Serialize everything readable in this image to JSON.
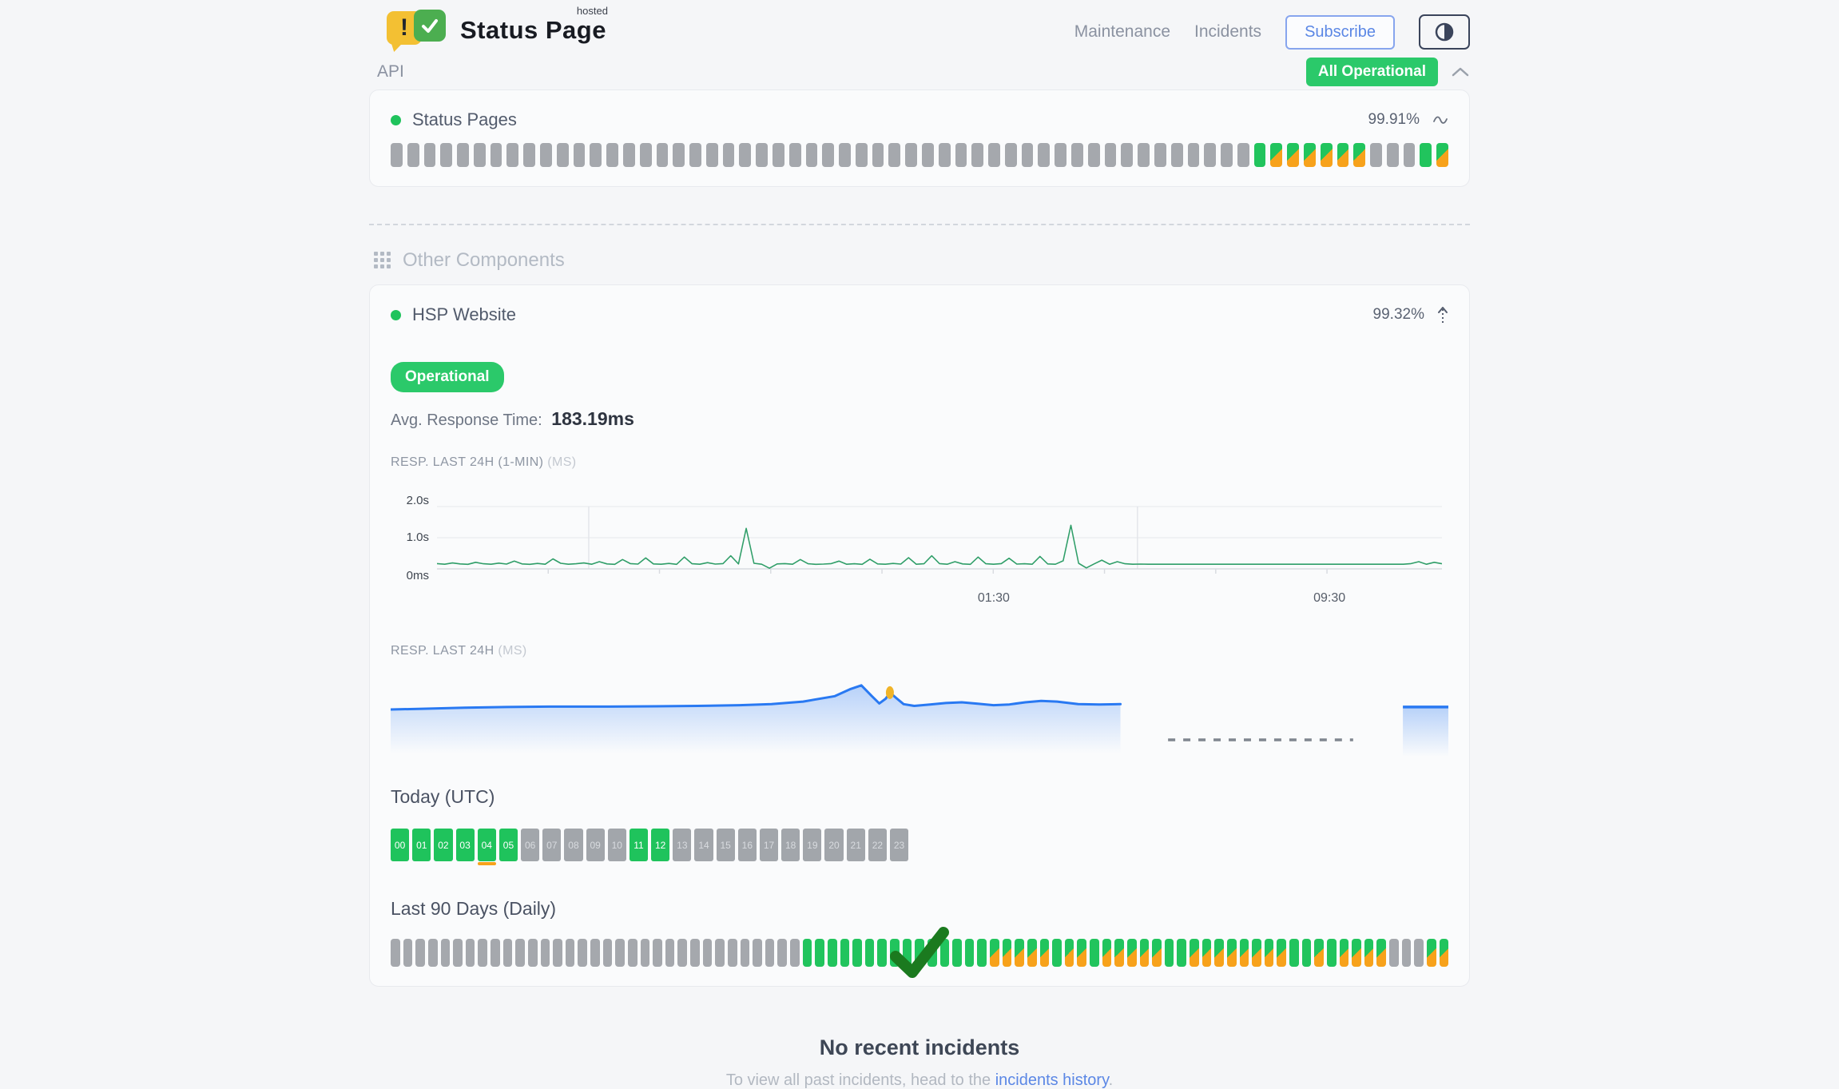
{
  "header": {
    "brand": {
      "name": "Status Page",
      "superscript": "hosted",
      "exclamation": "!"
    },
    "nav": [
      {
        "label": "Maintenance"
      },
      {
        "label": "Incidents"
      }
    ],
    "subscribe_label": "Subscribe",
    "status_badge": "All Operational"
  },
  "api_section": {
    "title": "API",
    "component": {
      "name": "Status Pages",
      "uptime": "99.91%"
    },
    "bars": [
      "g",
      "g",
      "g",
      "g",
      "g",
      "g",
      "g",
      "g",
      "g",
      "g",
      "g",
      "g",
      "g",
      "g",
      "g",
      "g",
      "g",
      "g",
      "g",
      "g",
      "g",
      "g",
      "g",
      "g",
      "g",
      "g",
      "g",
      "g",
      "g",
      "g",
      "g",
      "g",
      "g",
      "g",
      "g",
      "g",
      "g",
      "g",
      "g",
      "g",
      "g",
      "g",
      "g",
      "g",
      "g",
      "g",
      "g",
      "g",
      "g",
      "g",
      "g",
      "g",
      "G",
      "m",
      "m",
      "m",
      "m",
      "m",
      "m",
      "g",
      "g",
      "g",
      "G",
      "m"
    ]
  },
  "other_section": {
    "title": "Other Components",
    "component": {
      "name": "HSP Website",
      "uptime": "99.32%",
      "status_label": "Operational",
      "avg_label": "Avg. Response Time:",
      "avg_value": "183.19ms",
      "chart1_label": "RESP. LAST 24H (1-MIN)",
      "chart1_unit": "(MS)",
      "chart2_label": "RESP. LAST 24H",
      "chart2_unit": "(MS)",
      "today_label": "Today (UTC)",
      "last90_label": "Last 90 Days (Daily)"
    }
  },
  "chart_data": [
    {
      "type": "line",
      "title": "RESP. LAST 24H (1-MIN) (MS)",
      "ylabels": [
        "2.0s",
        "1.0s",
        "0ms"
      ],
      "ylim": [
        0,
        2000
      ],
      "grid": true,
      "xticks": [
        {
          "label": "01:30",
          "pos": 0.554
        },
        {
          "label": "09:30",
          "pos": 0.888
        }
      ],
      "vlines": [
        0.151,
        0.697
      ],
      "values": [
        170,
        150,
        190,
        160,
        145,
        210,
        165,
        150,
        185,
        155,
        250,
        160,
        145,
        175,
        150,
        320,
        180,
        150,
        165,
        190,
        150,
        230,
        160,
        145,
        300,
        170,
        155,
        350,
        160,
        150,
        175,
        145,
        380,
        165,
        150,
        200,
        155,
        170,
        420,
        160,
        1300,
        180,
        150,
        20,
        160,
        170,
        150,
        300,
        165,
        145,
        155,
        170,
        250,
        150,
        165,
        145,
        310,
        160,
        150,
        175,
        155,
        360,
        150,
        165,
        420,
        170,
        150,
        230,
        160,
        145,
        380,
        165,
        150,
        170,
        340,
        155,
        165,
        150,
        400,
        160,
        150,
        260,
        1400,
        180,
        30,
        160,
        280,
        150,
        230,
        165,
        150,
        155,
        150,
        150,
        150,
        150,
        150,
        150,
        150,
        150,
        150,
        150,
        150,
        150,
        150,
        150,
        150,
        150,
        150,
        150,
        150,
        150,
        150,
        150,
        150,
        150,
        150,
        150,
        150,
        150,
        150,
        150,
        150,
        150,
        150,
        150,
        170,
        230,
        150,
        210,
        165
      ]
    },
    {
      "type": "area",
      "title": "RESP. LAST 24H (MS)",
      "main_points": [
        [
          0,
          148
        ],
        [
          0.03,
          150
        ],
        [
          0.07,
          153
        ],
        [
          0.11,
          155
        ],
        [
          0.15,
          156
        ],
        [
          0.2,
          156
        ],
        [
          0.25,
          157
        ],
        [
          0.29,
          158
        ],
        [
          0.33,
          160
        ],
        [
          0.36,
          163
        ],
        [
          0.39,
          170
        ],
        [
          0.42,
          185
        ],
        [
          0.435,
          205
        ],
        [
          0.445,
          215
        ],
        [
          0.455,
          185
        ],
        [
          0.462,
          165
        ],
        [
          0.468,
          178
        ],
        [
          0.472,
          195
        ],
        [
          0.478,
          180
        ],
        [
          0.485,
          163
        ],
        [
          0.495,
          158
        ],
        [
          0.51,
          162
        ],
        [
          0.525,
          166
        ],
        [
          0.54,
          168
        ],
        [
          0.555,
          164
        ],
        [
          0.57,
          160
        ],
        [
          0.585,
          162
        ],
        [
          0.6,
          168
        ],
        [
          0.615,
          172
        ],
        [
          0.63,
          170
        ],
        [
          0.65,
          163
        ],
        [
          0.67,
          162
        ],
        [
          0.69,
          163
        ]
      ],
      "marker_x": 0.472,
      "marker_value": 195,
      "gap_dashed_segment": [
        0.735,
        0.91
      ],
      "right_points": [
        [
          0.957,
          155
        ],
        [
          1.0,
          155
        ]
      ]
    },
    {
      "type": "status-blocks",
      "title": "Today (UTC)",
      "labels": [
        "00",
        "01",
        "02",
        "03",
        "04",
        "05",
        "06",
        "07",
        "08",
        "09",
        "10",
        "11",
        "12",
        "13",
        "14",
        "15",
        "16",
        "17",
        "18",
        "19",
        "20",
        "21",
        "22",
        "23"
      ],
      "statuses": [
        "green",
        "green",
        "green",
        "green",
        "green",
        "green",
        "gray",
        "gray",
        "gray",
        "gray",
        "gray",
        "green",
        "green",
        "gray",
        "gray",
        "gray",
        "gray",
        "gray",
        "gray",
        "gray",
        "gray",
        "gray",
        "gray",
        "gray"
      ],
      "underline_index": 4
    },
    {
      "type": "status-blocks",
      "title": "Last 90 Days (Daily)",
      "statuses": [
        "g",
        "g",
        "g",
        "g",
        "g",
        "g",
        "g",
        "g",
        "g",
        "g",
        "g",
        "g",
        "g",
        "g",
        "g",
        "g",
        "g",
        "g",
        "g",
        "g",
        "g",
        "g",
        "g",
        "g",
        "g",
        "g",
        "g",
        "g",
        "g",
        "g",
        "g",
        "g",
        "g",
        "G",
        "G",
        "G",
        "G",
        "G",
        "G",
        "G",
        "G",
        "G",
        "G",
        "G",
        "G",
        "G",
        "G",
        "G",
        "m",
        "m",
        "m",
        "m",
        "m",
        "G",
        "m",
        "m",
        "G",
        "m",
        "m",
        "m",
        "m",
        "m",
        "G",
        "G",
        "m",
        "m",
        "m",
        "m",
        "m",
        "m",
        "m",
        "m",
        "G",
        "G",
        "m",
        "G",
        "m",
        "m",
        "m",
        "m",
        "g",
        "g",
        "g",
        "m",
        "m"
      ]
    }
  ],
  "incidents": {
    "title": "No recent incidents",
    "subtitle_prefix": "To view all past incidents, head to the ",
    "link_text": "incidents history",
    "subtitle_suffix": "."
  },
  "colors": {
    "green": "#21c45d",
    "badge_green": "#2bc96a",
    "orange": "#f7a21b",
    "gray_bar": "#a5a8ad",
    "line_green": "#2f9e68",
    "area_blue": "#2979f2",
    "marker_yellow": "#f0b429",
    "link_blue": "#5b87e5",
    "check_green": "#1b7a1f"
  }
}
